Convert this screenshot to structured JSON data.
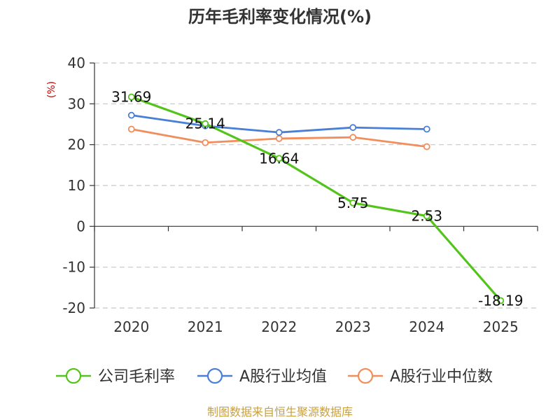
{
  "chart_data": {
    "type": "line",
    "title": "历年毛利率变化情况(%)",
    "ylabel": "(%)",
    "categories": [
      "2020",
      "2021",
      "2022",
      "2023",
      "2024",
      "2025"
    ],
    "ylim": [
      -20,
      40
    ],
    "yticks": [
      40,
      30,
      20,
      10,
      0,
      -10,
      -20
    ],
    "grid": true,
    "legend_position": "bottom",
    "series": [
      {
        "name": "公司毛利率",
        "color": "#52c41a",
        "values": [
          31.69,
          25.14,
          16.64,
          5.75,
          2.53,
          -18.19
        ],
        "labels": [
          "31.69",
          "25.14",
          "16.64",
          "5.75",
          "2.53",
          "-18.19"
        ]
      },
      {
        "name": "A股行业均值",
        "color": "#4a7fd6",
        "values": [
          27.2,
          24.6,
          23.0,
          24.2,
          23.8,
          null
        ]
      },
      {
        "name": "A股行业中位数",
        "color": "#f28d5c",
        "values": [
          23.8,
          20.5,
          21.5,
          21.8,
          19.5,
          null
        ]
      }
    ]
  },
  "source": "制图数据来自恒生聚源数据库",
  "colors": {
    "unit": "#cc0000",
    "source": "#c8a040",
    "grid": "#c8c8c8",
    "axis": "#333333"
  }
}
